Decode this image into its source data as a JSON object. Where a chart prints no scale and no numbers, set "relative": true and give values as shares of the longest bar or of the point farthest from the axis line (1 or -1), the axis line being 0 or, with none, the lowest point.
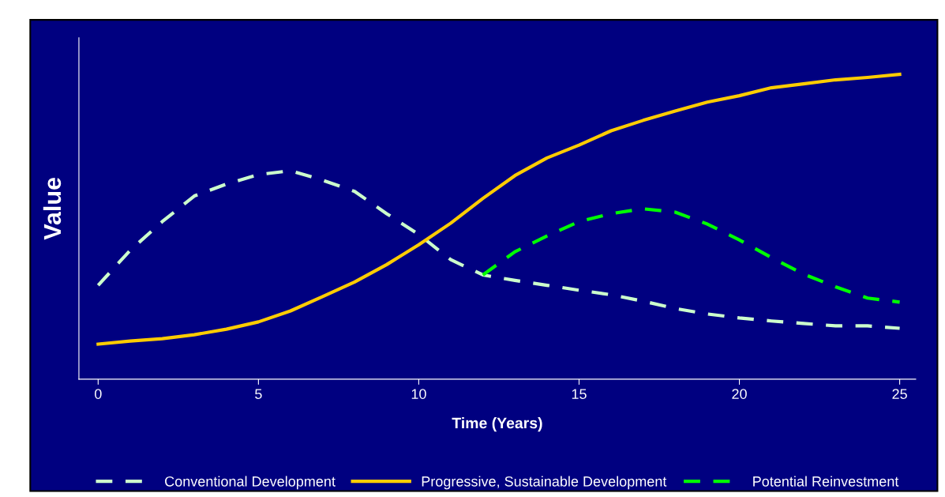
{
  "chart_data": {
    "type": "line",
    "relative": true,
    "xlabel": "Time (Years)",
    "ylabel": "Value",
    "x": [
      0,
      1,
      2,
      3,
      4,
      5,
      6,
      7,
      8,
      9,
      10,
      11,
      12,
      13,
      14,
      15,
      16,
      17,
      18,
      19,
      20,
      21,
      22,
      23,
      24,
      25
    ],
    "xlim": [
      -0.6,
      25.5
    ],
    "xticks": [
      0,
      5,
      10,
      15,
      20,
      25
    ],
    "grid": false,
    "legend": "bottom",
    "series": [
      {
        "name": "Conventional Development",
        "color": "#ccffcc",
        "line_style": "dashed",
        "values": [
          0.308,
          0.423,
          0.517,
          0.601,
          0.64,
          0.671,
          0.684,
          0.653,
          0.616,
          0.543,
          0.475,
          0.392,
          0.342,
          0.324,
          0.308,
          0.292,
          0.277,
          0.256,
          0.232,
          0.214,
          0.201,
          0.191,
          0.183,
          0.175,
          0.175,
          0.167
        ]
      },
      {
        "name": "Progressive, Sustainable Development",
        "color": "#ffcc00",
        "line_style": "solid",
        "values": [
          0.115,
          0.125,
          0.133,
          0.146,
          0.164,
          0.188,
          0.224,
          0.271,
          0.319,
          0.376,
          0.441,
          0.512,
          0.593,
          0.668,
          0.726,
          0.768,
          0.815,
          0.849,
          0.88,
          0.909,
          0.93,
          0.956,
          0.969,
          0.982,
          0.99,
          1.0
        ]
      },
      {
        "name": "Potential Reinvestment",
        "color": "#00ff00",
        "line_style": "dashed",
        "x": [
          12,
          13,
          14,
          15,
          16,
          17,
          18,
          19,
          20,
          21,
          22,
          23,
          24,
          25
        ],
        "values": [
          0.342,
          0.418,
          0.47,
          0.517,
          0.543,
          0.559,
          0.548,
          0.509,
          0.457,
          0.399,
          0.345,
          0.303,
          0.266,
          0.253
        ]
      }
    ]
  }
}
